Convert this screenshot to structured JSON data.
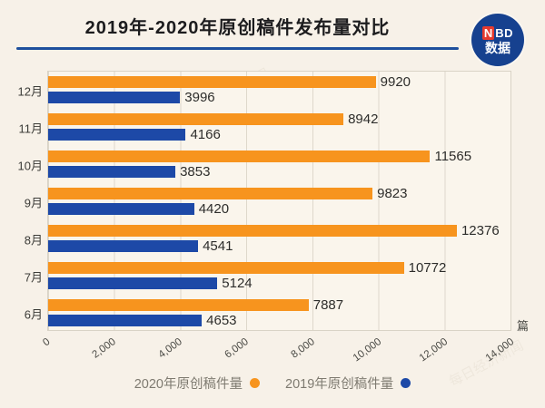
{
  "title": "2019年-2020年原创稿件发布量对比",
  "logo": {
    "n": "N",
    "bd": "BD",
    "cn": "数据"
  },
  "watermark_text": "每日经济新闻",
  "chart_data": {
    "type": "bar",
    "orientation": "horizontal",
    "title": "2019年-2020年原创稿件发布量对比",
    "categories": [
      "12月",
      "11月",
      "10月",
      "9月",
      "8月",
      "7月",
      "6月"
    ],
    "series": [
      {
        "name": "2020年原创稿件量",
        "color": "#f7941e",
        "values": [
          9920,
          8942,
          11565,
          9823,
          12376,
          10772,
          7887
        ]
      },
      {
        "name": "2019年原创稿件量",
        "color": "#1d49a7",
        "values": [
          3996,
          4166,
          3853,
          4420,
          4541,
          5124,
          4653
        ]
      }
    ],
    "xlim": [
      0,
      14000
    ],
    "x_ticks": [
      "0",
      "2,000",
      "4,000",
      "6,000",
      "8,000",
      "10,000",
      "12,000",
      "14,000"
    ],
    "x_unit": "篇",
    "grid": true,
    "legend_position": "bottom"
  },
  "legend": [
    {
      "label": "2020年原创稿件量",
      "color": "#f7941e"
    },
    {
      "label": "2019年原创稿件量",
      "color": "#1d49a7"
    }
  ]
}
